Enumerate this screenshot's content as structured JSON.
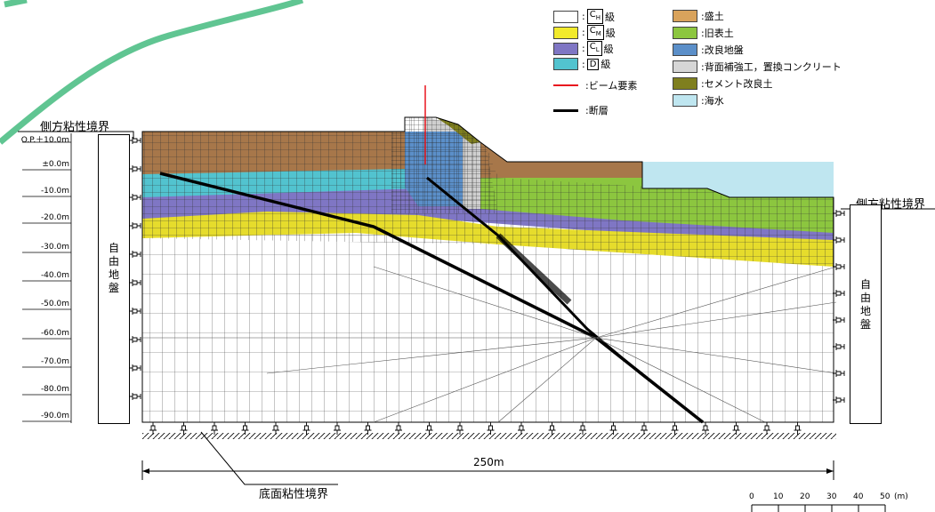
{
  "legend": {
    "rock_classes": [
      {
        "main": "C",
        "sub": "H",
        "suffix": "級",
        "color": "#ffffff"
      },
      {
        "main": "C",
        "sub": "M",
        "suffix": "級",
        "color": "#f2ea2c"
      },
      {
        "main": "C",
        "sub": "L",
        "suffix": "級",
        "color": "#7f76c4"
      },
      {
        "main": "D",
        "sub": "",
        "suffix": "級",
        "color": "#52c3cf"
      }
    ],
    "lines": [
      {
        "label": "ビーム要素",
        "color": "#e8141e"
      },
      {
        "label": "断層",
        "color": "#000000"
      }
    ],
    "materials": [
      {
        "label": "盛土",
        "color": "#d9a35c"
      },
      {
        "label": "旧表土",
        "color": "#8cc63f"
      },
      {
        "label": "改良地盤",
        "color": "#5b8fc9"
      },
      {
        "label": "背面補強工，置換コンクリート",
        "color": "#d6d6d6"
      },
      {
        "label": "セメント改良土",
        "color": "#7f7f1e"
      },
      {
        "label": "海水",
        "color": "#bfe6f0"
      }
    ],
    "colon": ":"
  },
  "labels": {
    "lateral_left": "側方粘性境界",
    "lateral_right": "側方粘性境界",
    "free_ground": "自由地盤",
    "bottom_boundary": "底面粘性境界",
    "width_dim": "250m"
  },
  "elevations": [
    "O.P.＋10.0m",
    "±0.0m",
    "-10.0m",
    "-20.0m",
    "-30.0m",
    "-40.0m",
    "-50.0m",
    "-60.0m",
    "-70.0m",
    "-80.0m",
    "-90.0m"
  ],
  "scale": {
    "ticks": [
      "0",
      "10",
      "20",
      "30",
      "40",
      "50"
    ],
    "unit": "(m)"
  }
}
